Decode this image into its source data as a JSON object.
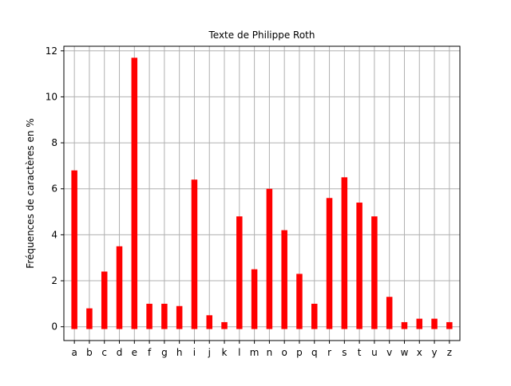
{
  "chart_data": {
    "type": "bar",
    "title": "Texte de Philippe Roth",
    "xlabel": "",
    "ylabel": "Fréquences de caractères en %",
    "categories": [
      "a",
      "b",
      "c",
      "d",
      "e",
      "f",
      "g",
      "h",
      "i",
      "j",
      "k",
      "l",
      "m",
      "n",
      "o",
      "p",
      "q",
      "r",
      "s",
      "t",
      "u",
      "v",
      "w",
      "x",
      "y",
      "z"
    ],
    "values": [
      6.8,
      0.8,
      2.4,
      3.5,
      11.7,
      1.0,
      1.0,
      0.9,
      6.4,
      0.5,
      0.2,
      4.8,
      2.5,
      6.0,
      4.2,
      2.3,
      1.0,
      5.6,
      6.5,
      5.4,
      4.8,
      1.3,
      0.2,
      0.35,
      0.35,
      0.2
    ],
    "bar_baseline": -0.1,
    "ylim": [
      -0.6,
      12.2
    ],
    "yticks": [
      0,
      2,
      4,
      6,
      8,
      10,
      12
    ],
    "grid": true,
    "colors": {
      "bar": "#ff0000",
      "grid": "#b0b0b0",
      "axis": "#000000"
    }
  }
}
